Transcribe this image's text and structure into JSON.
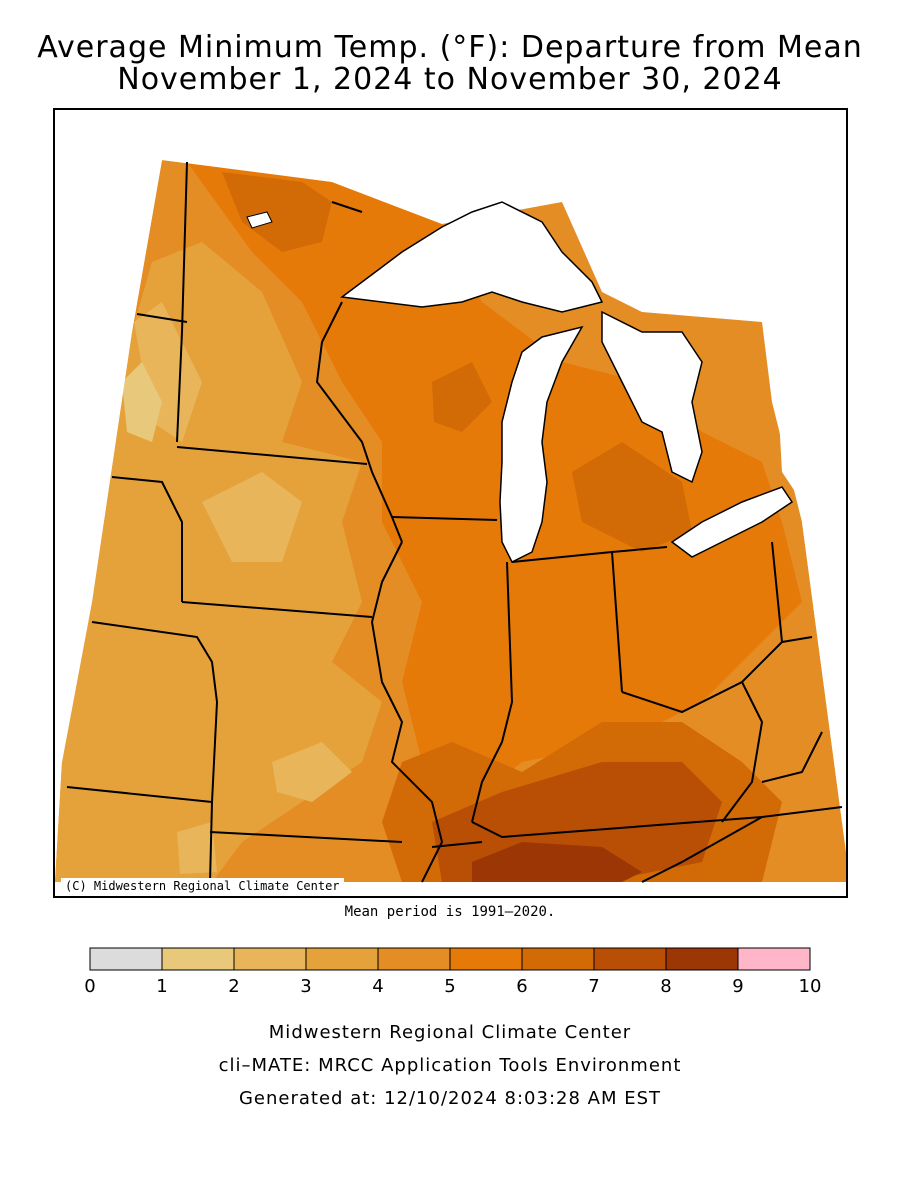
{
  "title": {
    "line1": "Average Minimum Temp. (°F): Departure from Mean",
    "line2": "November 1, 2024 to November 30, 2024"
  },
  "map": {
    "copyright": "(C) Midwestern Regional Climate Center",
    "water_color": "#ffffff",
    "border_color": "#000000"
  },
  "mean_period": "Mean period is 1991–2020.",
  "legend": {
    "tick_labels": [
      "0",
      "1",
      "2",
      "3",
      "4",
      "5",
      "6",
      "7",
      "8",
      "9",
      "10"
    ],
    "bins": [
      {
        "min": 0,
        "max": 1,
        "color": "#dcdcdc"
      },
      {
        "min": 1,
        "max": 2,
        "color": "#e8c87a"
      },
      {
        "min": 2,
        "max": 3,
        "color": "#e8b55a"
      },
      {
        "min": 3,
        "max": 4,
        "color": "#e6a23a"
      },
      {
        "min": 4,
        "max": 5,
        "color": "#e58d25"
      },
      {
        "min": 5,
        "max": 6,
        "color": "#e67a08"
      },
      {
        "min": 6,
        "max": 7,
        "color": "#d26a06"
      },
      {
        "min": 7,
        "max": 8,
        "color": "#b94e05"
      },
      {
        "min": 8,
        "max": 9,
        "color": "#9c3604"
      },
      {
        "min": 9,
        "max": 10,
        "color": "#ffb6c8"
      }
    ]
  },
  "footer": {
    "line1": "Midwestern Regional Climate Center",
    "line2": "cli–MATE: MRCC Application Tools Environment",
    "line3": "Generated at: 12/10/2024 8:03:28 AM EST"
  }
}
